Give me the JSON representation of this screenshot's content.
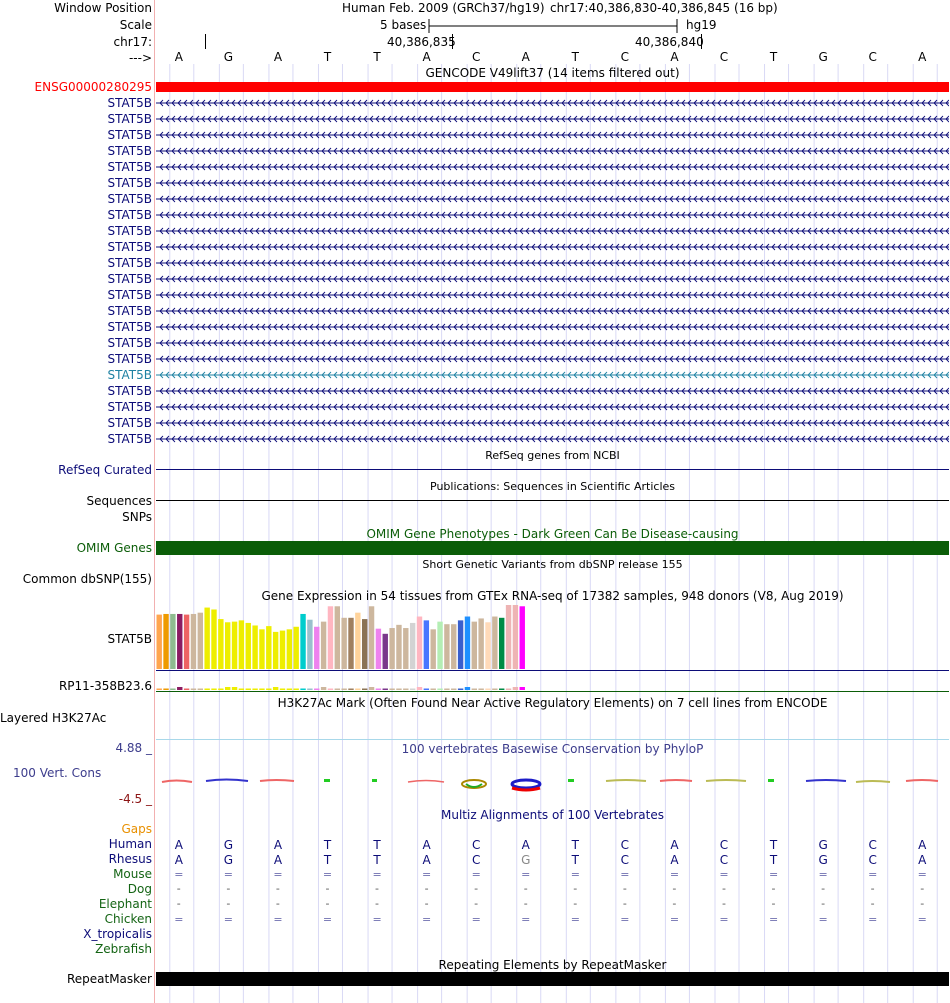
{
  "header": {
    "labels": {
      "window_position": "Window Position",
      "scale": "Scale",
      "chrom": "chr17:",
      "arrow": "--->"
    },
    "assembly": "Human Feb. 2009 (GRCh37/hg19)",
    "position": "chr17:40,386,830-40,386,845 (16 bp)",
    "scale_text": "5 bases",
    "scale_db": "hg19",
    "tick1": "40,386,835",
    "tick2": "40,386,840"
  },
  "bases": [
    "A",
    "G",
    "A",
    "T",
    "T",
    "A",
    "C",
    "A",
    "T",
    "C",
    "A",
    "C",
    "T",
    "G",
    "C",
    "A"
  ],
  "gencode": {
    "title": "GENCODE V49lift37 (14 items filtered out)",
    "ensg_label": "ENSG00000280295",
    "ensg_color": "#ff0000",
    "transcripts": [
      "STAT5B",
      "STAT5B",
      "STAT5B",
      "STAT5B",
      "STAT5B",
      "STAT5B",
      "STAT5B",
      "STAT5B",
      "STAT5B",
      "STAT5B",
      "STAT5B",
      "STAT5B",
      "STAT5B",
      "STAT5B",
      "STAT5B",
      "STAT5B",
      "STAT5B",
      "STAT5B",
      "STAT5B",
      "STAT5B",
      "STAT5B",
      "STAT5B"
    ],
    "highlight_index": 17,
    "colors": {
      "normal": "#0c0c78",
      "highlight": "#1f82a3"
    }
  },
  "refseq": {
    "title": "RefSeq genes from NCBI",
    "label": "RefSeq Curated"
  },
  "publications": {
    "title": "Publications: Sequences in Scientific Articles",
    "label": "Sequences"
  },
  "snps": {
    "label": "SNPs"
  },
  "omim": {
    "title": "OMIM Gene Phenotypes - Dark Green Can Be Disease-causing",
    "label": "OMIM Genes",
    "color": "#0b5d08"
  },
  "dbsnp": {
    "title": "Short Genetic Variants from dbSNP release 155",
    "label": "Common dbSNP(155)"
  },
  "gtex": {
    "title": "Gene Expression in 54 tissues from GTEx RNA-seq of 17382 samples, 948 donors (V8, Aug 2019)",
    "label": "STAT5B",
    "label2": "RP11-358B23.6",
    "tissue_colors": [
      "#ffa54f",
      "#ee9a00",
      "#8fbc8f",
      "#8b1c62",
      "#ee6363",
      "#cdb79e",
      "#cdb79e",
      "#eeee00",
      "#eeee00",
      "#eeee00",
      "#eeee00",
      "#eeee00",
      "#eeee00",
      "#eeee00",
      "#eeee00",
      "#eeee00",
      "#eeee00",
      "#eeee00",
      "#eeee00",
      "#eeee00",
      "#eeee00",
      "#00cdcd",
      "#9ac0cd",
      "#ee82ee",
      "#cdb79e",
      "#ffb6c1",
      "#cdb79e",
      "#cdb79e",
      "#a08060",
      "#ffd39b",
      "#8b7355",
      "#cdb79e",
      "#ee82ee",
      "#7a378b",
      "#cdb79e",
      "#cdb79e",
      "#cdb79e",
      "#d3d3d3",
      "#ffb6c1",
      "#4876ff",
      "#cdb79e",
      "#b4eeb4",
      "#cdb79e",
      "#cdb79e",
      "#3a5fcd",
      "#1e90ff",
      "#cdb79e",
      "#cdb79e",
      "#ffdab9",
      "#cdb79e",
      "#008b45",
      "#eeb4b4",
      "#eeb4b4",
      "#ff00ff"
    ],
    "tissue_values": [
      0.85,
      0.86,
      0.86,
      0.86,
      0.85,
      0.86,
      0.88,
      0.96,
      0.93,
      0.78,
      0.73,
      0.74,
      0.76,
      0.72,
      0.68,
      0.62,
      0.67,
      0.58,
      0.6,
      0.62,
      0.66,
      0.86,
      0.77,
      0.66,
      0.74,
      0.98,
      0.98,
      0.8,
      0.8,
      0.88,
      0.78,
      0.98,
      0.63,
      0.55,
      0.64,
      0.69,
      0.64,
      0.72,
      0.82,
      0.76,
      0.62,
      0.74,
      0.7,
      0.7,
      0.76,
      0.82,
      0.74,
      0.79,
      0.73,
      0.82,
      0.8,
      1.0,
      1.0,
      0.98
    ]
  },
  "h3k27ac": {
    "title": "H3K27Ac Mark (Often Found Near Active Regulatory Elements) on 7 cell lines from ENCODE",
    "label": "Layered H3K27Ac"
  },
  "phylop": {
    "title": "100 vertebrates Basewise Conservation by PhyloP",
    "label": "100 Vert. Cons",
    "max": "4.88 _",
    "min": "-4.5 _",
    "title_color": "#3c3c8c"
  },
  "multiz": {
    "title": "Multiz Alignments of 100 Vertebrates",
    "gaps_label": "Gaps",
    "species": [
      {
        "name": "Human",
        "color": "#0c0c78"
      },
      {
        "name": "Rhesus",
        "color": "#0c0c78"
      },
      {
        "name": "Mouse",
        "color": "#146414"
      },
      {
        "name": "Dog",
        "color": "#146414"
      },
      {
        "name": "Elephant",
        "color": "#146414"
      },
      {
        "name": "Chicken",
        "color": "#146414"
      },
      {
        "name": "X_tropicalis",
        "color": "#0c0c78"
      },
      {
        "name": "Zebrafish",
        "color": "#146414"
      }
    ],
    "human_row": [
      "A",
      "G",
      "A",
      "T",
      "T",
      "A",
      "C",
      "A",
      "T",
      "C",
      "A",
      "C",
      "T",
      "G",
      "C",
      "A"
    ],
    "rhesus_row": [
      "A",
      "G",
      "A",
      "T",
      "T",
      "A",
      "C",
      "G",
      "T",
      "C",
      "A",
      "C",
      "T",
      "G",
      "C",
      "A"
    ],
    "mouse_row": [
      "=",
      "=",
      "=",
      "=",
      "=",
      "=",
      "=",
      "=",
      "=",
      "=",
      "=",
      "=",
      "=",
      "=",
      "=",
      "="
    ],
    "dog_row": [
      "-",
      "-",
      "-",
      "-",
      "-",
      "-",
      "-",
      "-",
      "-",
      "-",
      "-",
      "-",
      "-",
      "-",
      "-",
      "-"
    ],
    "elephant_row": [
      "-",
      "-",
      "-",
      "-",
      "-",
      "-",
      "-",
      "-",
      "-",
      "-",
      "-",
      "-",
      "-",
      "-",
      "-",
      "-"
    ],
    "chicken_row": [
      "=",
      "=",
      "=",
      "=",
      "=",
      "=",
      "=",
      "=",
      "=",
      "=",
      "=",
      "=",
      "=",
      "=",
      "=",
      "="
    ]
  },
  "repeatmasker": {
    "title": "Repeating Elements by RepeatMasker",
    "label": "RepeatMasker"
  }
}
